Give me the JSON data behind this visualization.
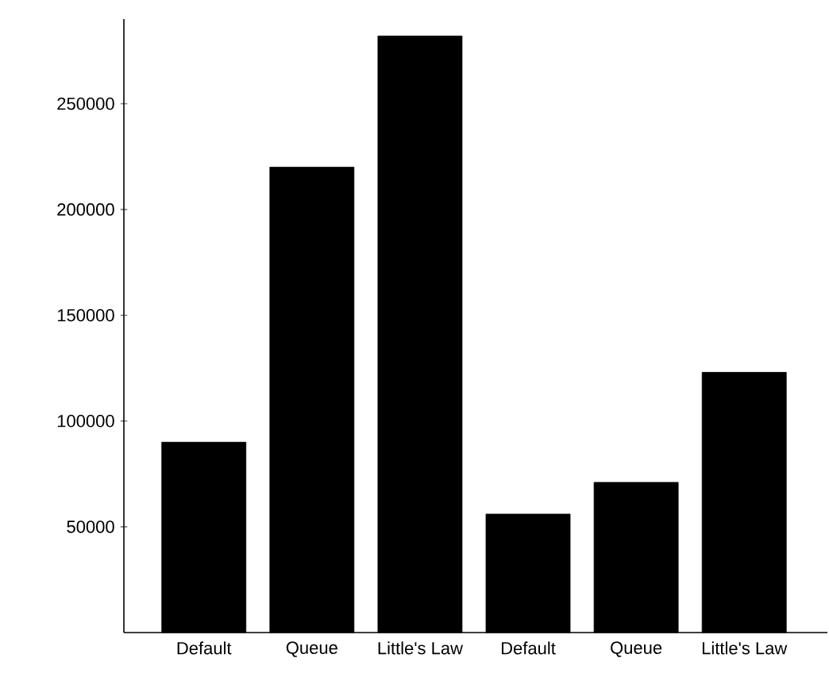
{
  "chart_data": {
    "type": "bar",
    "categories": [
      "Default",
      "Queue",
      "Little's Law",
      "Default",
      "Queue",
      "Little's Law"
    ],
    "values": [
      90000,
      220000,
      282000,
      56000,
      71000,
      123000
    ],
    "color": "#000000",
    "ylim": [
      0,
      290000
    ],
    "yticks": [
      50000,
      100000,
      150000,
      200000,
      250000
    ],
    "grid": false
  }
}
